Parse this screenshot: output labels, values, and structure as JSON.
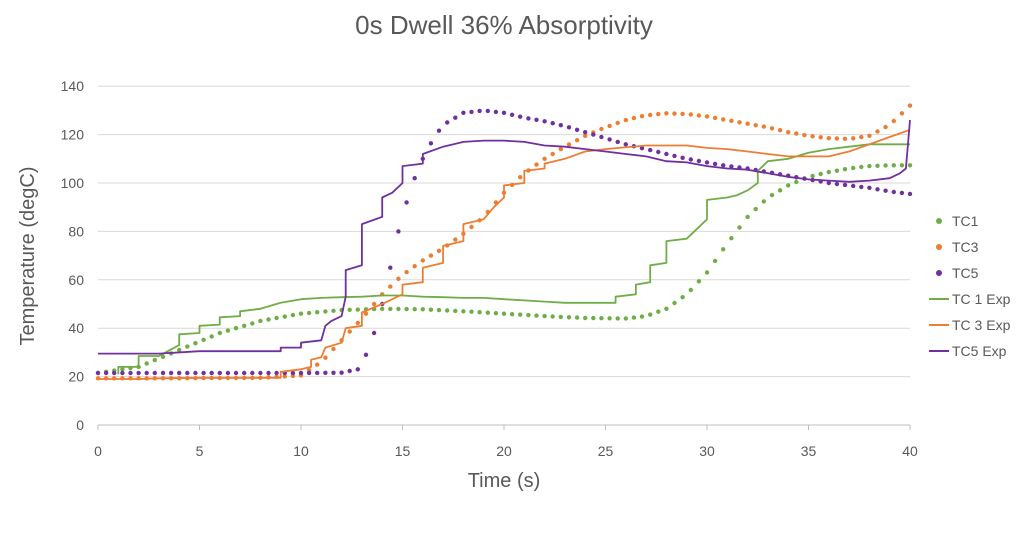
{
  "chart_data": {
    "type": "line",
    "title": "0s Dwell 36% Absorptivity",
    "xlabel": "Time (s)",
    "ylabel": "Temperature (degC)",
    "xlim": [
      0,
      40
    ],
    "ylim": [
      0,
      150
    ],
    "xticks": [
      0,
      5,
      10,
      15,
      20,
      25,
      30,
      35,
      40
    ],
    "yticks": [
      0,
      20,
      40,
      60,
      80,
      100,
      120,
      140
    ],
    "grid": true,
    "legend_position": "right",
    "series": [
      {
        "name": "TC1",
        "style": "dots",
        "color": "#70ad47",
        "points": [
          [
            0,
            21.5
          ],
          [
            2,
            24
          ],
          [
            4,
            31
          ],
          [
            6,
            38
          ],
          [
            8,
            43
          ],
          [
            10,
            46
          ],
          [
            12,
            47.5
          ],
          [
            14,
            48
          ],
          [
            16,
            47.8
          ],
          [
            18,
            47
          ],
          [
            20,
            46
          ],
          [
            22,
            45
          ],
          [
            24,
            44.2
          ],
          [
            26,
            44
          ],
          [
            27,
            45
          ],
          [
            28,
            48
          ],
          [
            29,
            54
          ],
          [
            30,
            63
          ],
          [
            31,
            75
          ],
          [
            32,
            86
          ],
          [
            33,
            94
          ],
          [
            34,
            99
          ],
          [
            35,
            102.5
          ],
          [
            36,
            104.5
          ],
          [
            37,
            106
          ],
          [
            38,
            107
          ],
          [
            39,
            107.3
          ],
          [
            40,
            107.3
          ]
        ]
      },
      {
        "name": "TC3",
        "style": "dots",
        "color": "#ed7d31",
        "points": [
          [
            0,
            19.3
          ],
          [
            4,
            19.3
          ],
          [
            8,
            19.5
          ],
          [
            10,
            20.5
          ],
          [
            11,
            26
          ],
          [
            12,
            35
          ],
          [
            13,
            44
          ],
          [
            14,
            54
          ],
          [
            15,
            62
          ],
          [
            16,
            68
          ],
          [
            17,
            73
          ],
          [
            18,
            79
          ],
          [
            19,
            86
          ],
          [
            20,
            96
          ],
          [
            21,
            104
          ],
          [
            22,
            110
          ],
          [
            23,
            115
          ],
          [
            24,
            119.5
          ],
          [
            25,
            123
          ],
          [
            26,
            126
          ],
          [
            27,
            128
          ],
          [
            28,
            128.8
          ],
          [
            29,
            128.5
          ],
          [
            30,
            127.5
          ],
          [
            31,
            126
          ],
          [
            32,
            124.5
          ],
          [
            33,
            123
          ],
          [
            34,
            121
          ],
          [
            35,
            119.5
          ],
          [
            36,
            118.5
          ],
          [
            37,
            118.2
          ],
          [
            38,
            119.5
          ],
          [
            39,
            124
          ],
          [
            40,
            132
          ]
        ]
      },
      {
        "name": "TC5",
        "style": "dots",
        "color": "#7030a0",
        "points": [
          [
            0,
            21.5
          ],
          [
            4,
            21.5
          ],
          [
            8,
            21.5
          ],
          [
            10,
            21.5
          ],
          [
            12,
            21.6
          ],
          [
            12.8,
            23
          ],
          [
            13.2,
            29
          ],
          [
            13.6,
            38
          ],
          [
            14,
            50
          ],
          [
            14.4,
            65
          ],
          [
            14.8,
            80
          ],
          [
            15.2,
            92
          ],
          [
            15.6,
            102
          ],
          [
            16,
            110
          ],
          [
            16.5,
            118
          ],
          [
            17,
            124
          ],
          [
            18,
            129
          ],
          [
            19,
            130
          ],
          [
            20,
            129
          ],
          [
            21,
            127
          ],
          [
            22,
            125.5
          ],
          [
            23,
            123.5
          ],
          [
            24,
            121
          ],
          [
            25,
            118.5
          ],
          [
            26,
            116
          ],
          [
            27,
            114
          ],
          [
            28,
            112
          ],
          [
            29,
            110
          ],
          [
            30,
            108.5
          ],
          [
            31,
            107
          ],
          [
            32,
            106
          ],
          [
            33,
            104.5
          ],
          [
            34,
            103
          ],
          [
            35,
            101.5
          ],
          [
            36,
            100
          ],
          [
            37,
            99
          ],
          [
            38,
            98
          ],
          [
            39,
            96.5
          ],
          [
            40,
            95.5
          ]
        ]
      },
      {
        "name": "TC 1 Exp",
        "style": "line",
        "color": "#70ad47",
        "points": [
          [
            1,
            21
          ],
          [
            1,
            24
          ],
          [
            2,
            24
          ],
          [
            2,
            28.5
          ],
          [
            3,
            28.5
          ],
          [
            4,
            33
          ],
          [
            4,
            37.5
          ],
          [
            5,
            38
          ],
          [
            5,
            41
          ],
          [
            6,
            41.5
          ],
          [
            6,
            44.5
          ],
          [
            7,
            45
          ],
          [
            7,
            47
          ],
          [
            8,
            48
          ],
          [
            9,
            50.5
          ],
          [
            10,
            52
          ],
          [
            11,
            52.5
          ],
          [
            12,
            52.8
          ],
          [
            13,
            53
          ],
          [
            14,
            53.5
          ],
          [
            15,
            53.5
          ],
          [
            16,
            53
          ],
          [
            17,
            52.8
          ],
          [
            18,
            52.5
          ],
          [
            19,
            52.5
          ],
          [
            20,
            52
          ],
          [
            21,
            51.5
          ],
          [
            22,
            51
          ],
          [
            23,
            50.5
          ],
          [
            25,
            50.5
          ],
          [
            25.5,
            50.5
          ],
          [
            25.5,
            53
          ],
          [
            26.5,
            54
          ],
          [
            26.5,
            58
          ],
          [
            27.2,
            59
          ],
          [
            27.2,
            66
          ],
          [
            28,
            67
          ],
          [
            28,
            76
          ],
          [
            29,
            77
          ],
          [
            30,
            85
          ],
          [
            30,
            93
          ],
          [
            31,
            94
          ],
          [
            31.5,
            95
          ],
          [
            32,
            97
          ],
          [
            32.5,
            100
          ],
          [
            32.5,
            105
          ],
          [
            33,
            109
          ],
          [
            34,
            110
          ],
          [
            35,
            112.5
          ],
          [
            36,
            114
          ],
          [
            37,
            115
          ],
          [
            38,
            116
          ],
          [
            39,
            116
          ],
          [
            40,
            116
          ]
        ]
      },
      {
        "name": "TC 3 Exp",
        "style": "line",
        "color": "#ed7d31",
        "points": [
          [
            0,
            19
          ],
          [
            2,
            19
          ],
          [
            3,
            19.3
          ],
          [
            5,
            19.5
          ],
          [
            9,
            19.5
          ],
          [
            9,
            22
          ],
          [
            10,
            23
          ],
          [
            10.5,
            24
          ],
          [
            10.5,
            27
          ],
          [
            11,
            28
          ],
          [
            11.2,
            32
          ],
          [
            12,
            34
          ],
          [
            12.2,
            40
          ],
          [
            13,
            41
          ],
          [
            13,
            46.5
          ],
          [
            14,
            50
          ],
          [
            15,
            54
          ],
          [
            15,
            58
          ],
          [
            16,
            59
          ],
          [
            16,
            65
          ],
          [
            17,
            67
          ],
          [
            17,
            74
          ],
          [
            18,
            76
          ],
          [
            18,
            83
          ],
          [
            19,
            85
          ],
          [
            19.5,
            90
          ],
          [
            20,
            94
          ],
          [
            20,
            99
          ],
          [
            21,
            100
          ],
          [
            21,
            105
          ],
          [
            22,
            106
          ],
          [
            22,
            108
          ],
          [
            23,
            110
          ],
          [
            24,
            113
          ],
          [
            25,
            114
          ],
          [
            27,
            115.5
          ],
          [
            29,
            115.5
          ],
          [
            30,
            114.5
          ],
          [
            31,
            114
          ],
          [
            32,
            113
          ],
          [
            33,
            112
          ],
          [
            34,
            111
          ],
          [
            36,
            111
          ],
          [
            37,
            113
          ],
          [
            38,
            116
          ],
          [
            39,
            119
          ],
          [
            40,
            122
          ]
        ]
      },
      {
        "name": "TC5 Exp",
        "style": "line",
        "color": "#7030a0",
        "points": [
          [
            0,
            29.5
          ],
          [
            3,
            29.5
          ],
          [
            5,
            30.5
          ],
          [
            9,
            30.5
          ],
          [
            9,
            32
          ],
          [
            10,
            32
          ],
          [
            10,
            34
          ],
          [
            11,
            35
          ],
          [
            11.2,
            41
          ],
          [
            11.5,
            43
          ],
          [
            12,
            45
          ],
          [
            12.2,
            53
          ],
          [
            12.2,
            64
          ],
          [
            13,
            66
          ],
          [
            13,
            83
          ],
          [
            14,
            86
          ],
          [
            14,
            94
          ],
          [
            14.5,
            96
          ],
          [
            15,
            100
          ],
          [
            15,
            107
          ],
          [
            15.5,
            107.5
          ],
          [
            16,
            108
          ],
          [
            16,
            112
          ],
          [
            17,
            115
          ],
          [
            18,
            117
          ],
          [
            19,
            117.5
          ],
          [
            20,
            117.5
          ],
          [
            21,
            117
          ],
          [
            22,
            115.5
          ],
          [
            23,
            115
          ],
          [
            24,
            114
          ],
          [
            25,
            113
          ],
          [
            26,
            112
          ],
          [
            27,
            111
          ],
          [
            28,
            109
          ],
          [
            29,
            108.5
          ],
          [
            30,
            107
          ],
          [
            31,
            106
          ],
          [
            32,
            105.5
          ],
          [
            33,
            104
          ],
          [
            34,
            102.5
          ],
          [
            35,
            101.5
          ],
          [
            36,
            101
          ],
          [
            37,
            100.5
          ],
          [
            38,
            101
          ],
          [
            39,
            102
          ],
          [
            39.5,
            104
          ],
          [
            39.8,
            106
          ],
          [
            40,
            126
          ]
        ]
      }
    ]
  }
}
